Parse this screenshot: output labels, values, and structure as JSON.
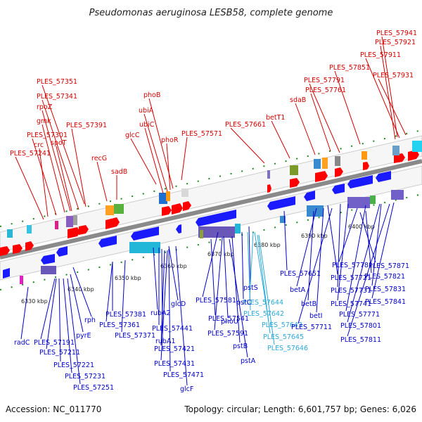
{
  "title": "Pseudomonas aeruginosa LESB58, complete genome",
  "accession": "Accession: NC_011770",
  "summary": "Topology: circular; Length: 6,601,757 bp; Genes: 6,026",
  "colors": {
    "forward_label": "#d40000",
    "reverse_label": "#0000c8",
    "highlight_label": "#2aa9d8",
    "backbone": "#8a8a8a"
  },
  "ticks": [
    "6330 kbp",
    "6340 kbp",
    "6350 kbp",
    "6360 kbp",
    "6370 kbp",
    "6380 kbp",
    "6390 kbp",
    "6400 kbp"
  ],
  "labels_top": [
    "PLES_57941",
    "PLES_57921",
    "PLES_57911",
    "PLES_57851",
    "PLES_57931",
    "PLES_57791",
    "PLES_57761",
    "sdaB",
    "PLES_57351",
    "PLES_57341",
    "phoB",
    "rpoZ",
    "ubiA",
    "betT1",
    "gmk",
    "ubiC",
    "PLES_57661",
    "PLES_57391",
    "PLES_57301",
    "spoT",
    "glcC",
    "phoR",
    "PLES_57571",
    "crc",
    "PLES_57241",
    "recG",
    "sadB"
  ],
  "labels_bottom": [
    "PLES_57871",
    "PLES_57781",
    "PLES_57821",
    "PLES_57651",
    "PLES_57721",
    "PLES_57831",
    "betA",
    "PLES_57731",
    "pstS",
    "PLES_57644",
    "betB",
    "PLES_57741",
    "PLES_57841",
    "PLES_57581",
    "pstC",
    "PLES_57642",
    "betI",
    "PLES_57771",
    "glcD",
    "PLES_57541",
    "phoU",
    "PLES_57643",
    "PLES_57711",
    "PLES_57801",
    "rph",
    "PLES_57381",
    "rubA2",
    "PLES_57361",
    "PLES_57441",
    "PLES_57591",
    "PLES_57645",
    "PLES_57811",
    "radC",
    "PLES_57191",
    "pyrE",
    "PLES_57371",
    "rubA1",
    "pstB",
    "PLES_57646",
    "PLES_57211",
    "PLES_57421",
    "PLES_57221",
    "PLES_57431",
    "pstA",
    "PLES_57231",
    "PLES_57471",
    "PLES_57251",
    "glcF"
  ]
}
